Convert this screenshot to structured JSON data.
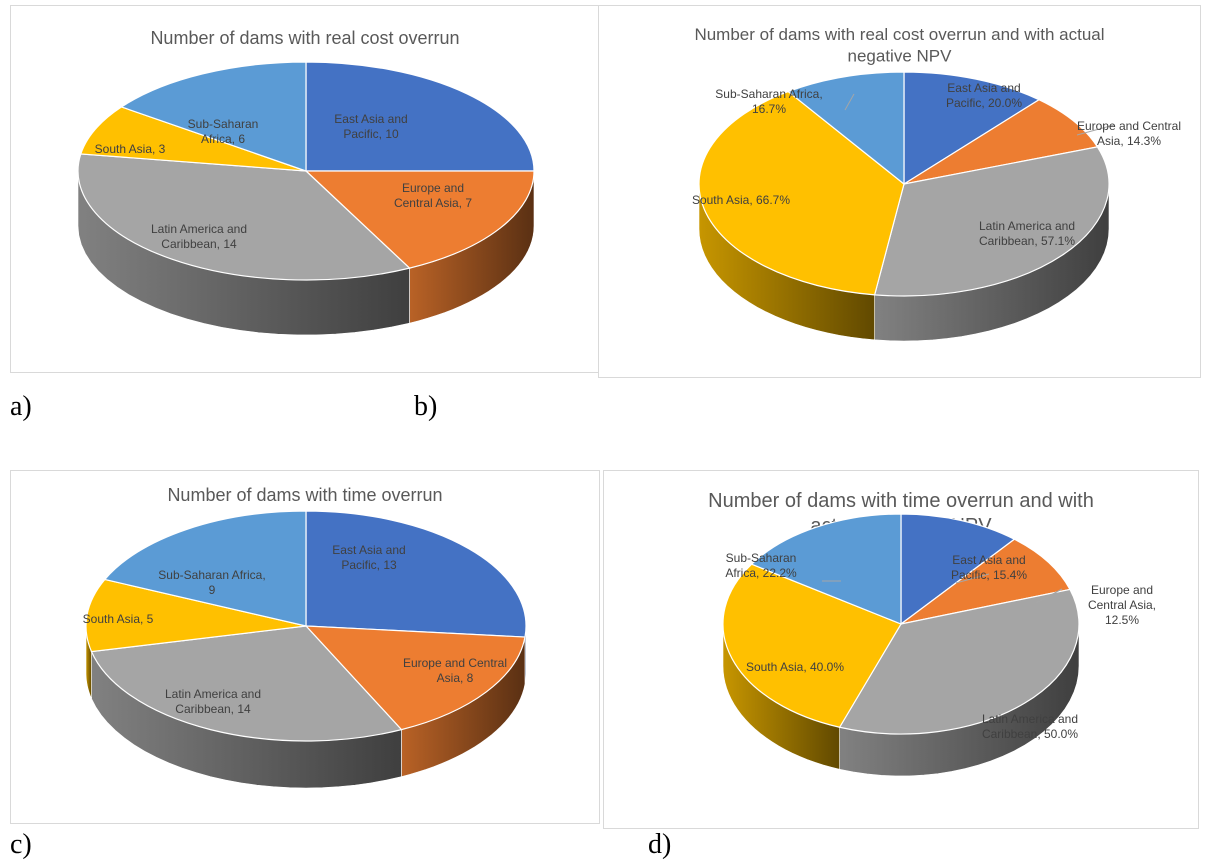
{
  "panel_labels": [
    "a)",
    "b)",
    "c)",
    "d)"
  ],
  "colors": {
    "East Asia and Pacific": "#4472c4",
    "Europe and Central Asia": "#ed7d31",
    "Latin America and Caribbean": "#a5a5a5",
    "South Asia": "#ffc000",
    "Sub-Saharan Africa": "#5b9bd5"
  },
  "chart_data": [
    {
      "type": "pie",
      "title": "Number of dams with real cost overrun",
      "labels": [
        "East Asia and Pacific",
        "Europe and Central Asia",
        "Latin America and Caribbean",
        "South Asia",
        "Sub-Saharan Africa"
      ],
      "values": [
        10,
        7,
        14,
        3,
        6
      ],
      "data_labels": [
        [
          "East Asia and",
          "Pacific, 10"
        ],
        [
          "Europe and",
          "Central Asia, 7"
        ],
        [
          "Latin America and",
          "Caribbean, 14"
        ],
        [
          "South Asia, 3"
        ],
        [
          "Sub-Saharan",
          "Africa, 6"
        ]
      ]
    },
    {
      "type": "pie",
      "title": "Number of dams with real cost overrun and with actual negative NPV",
      "title_lines": [
        "Number of dams with real cost overrun and with actual",
        "negative NPV"
      ],
      "labels": [
        "East Asia and Pacific",
        "Europe and Central Asia",
        "Latin America and Caribbean",
        "South Asia",
        "Sub-Saharan Africa"
      ],
      "values": [
        20.0,
        14.3,
        57.1,
        66.7,
        16.7
      ],
      "data_labels": [
        [
          "East Asia and",
          "Pacific, 20.0%"
        ],
        [
          "Europe and Central",
          "Asia, 14.3%"
        ],
        [
          "Latin America and",
          "Caribbean, 57.1%"
        ],
        [
          "South Asia, 66.7%"
        ],
        [
          "Sub-Saharan Africa,",
          "16.7%"
        ]
      ]
    },
    {
      "type": "pie",
      "title": "Number of dams with time overrun",
      "labels": [
        "East Asia and Pacific",
        "Europe and Central Asia",
        "Latin America and Caribbean",
        "South Asia",
        "Sub-Saharan Africa"
      ],
      "values": [
        13,
        8,
        14,
        5,
        9
      ],
      "data_labels": [
        [
          "East Asia and",
          "Pacific, 13"
        ],
        [
          "Europe and Central",
          "Asia, 8"
        ],
        [
          "Latin America and",
          "Caribbean, 14"
        ],
        [
          "South Asia, 5"
        ],
        [
          "Sub-Saharan Africa,",
          "9"
        ]
      ]
    },
    {
      "type": "pie",
      "title": "Number of dams with time overrun and with actual negative NPV",
      "title_lines": [
        "Number of dams with time overrun and with",
        "actual negative NPV"
      ],
      "labels": [
        "East Asia and Pacific",
        "Europe and Central Asia",
        "Latin America and Caribbean",
        "South Asia",
        "Sub-Saharan Africa"
      ],
      "values": [
        15.4,
        12.5,
        50.0,
        40.0,
        22.2
      ],
      "data_labels": [
        [
          "East Asia and",
          "Pacific, 15.4%"
        ],
        [
          "Europe and",
          "Central Asia,",
          "12.5%"
        ],
        [
          "Latin America and",
          "Caribbean, 50.0%"
        ],
        [
          "South Asia, 40.0%"
        ],
        [
          "Sub-Saharan",
          "Africa, 22.2%"
        ]
      ]
    }
  ]
}
